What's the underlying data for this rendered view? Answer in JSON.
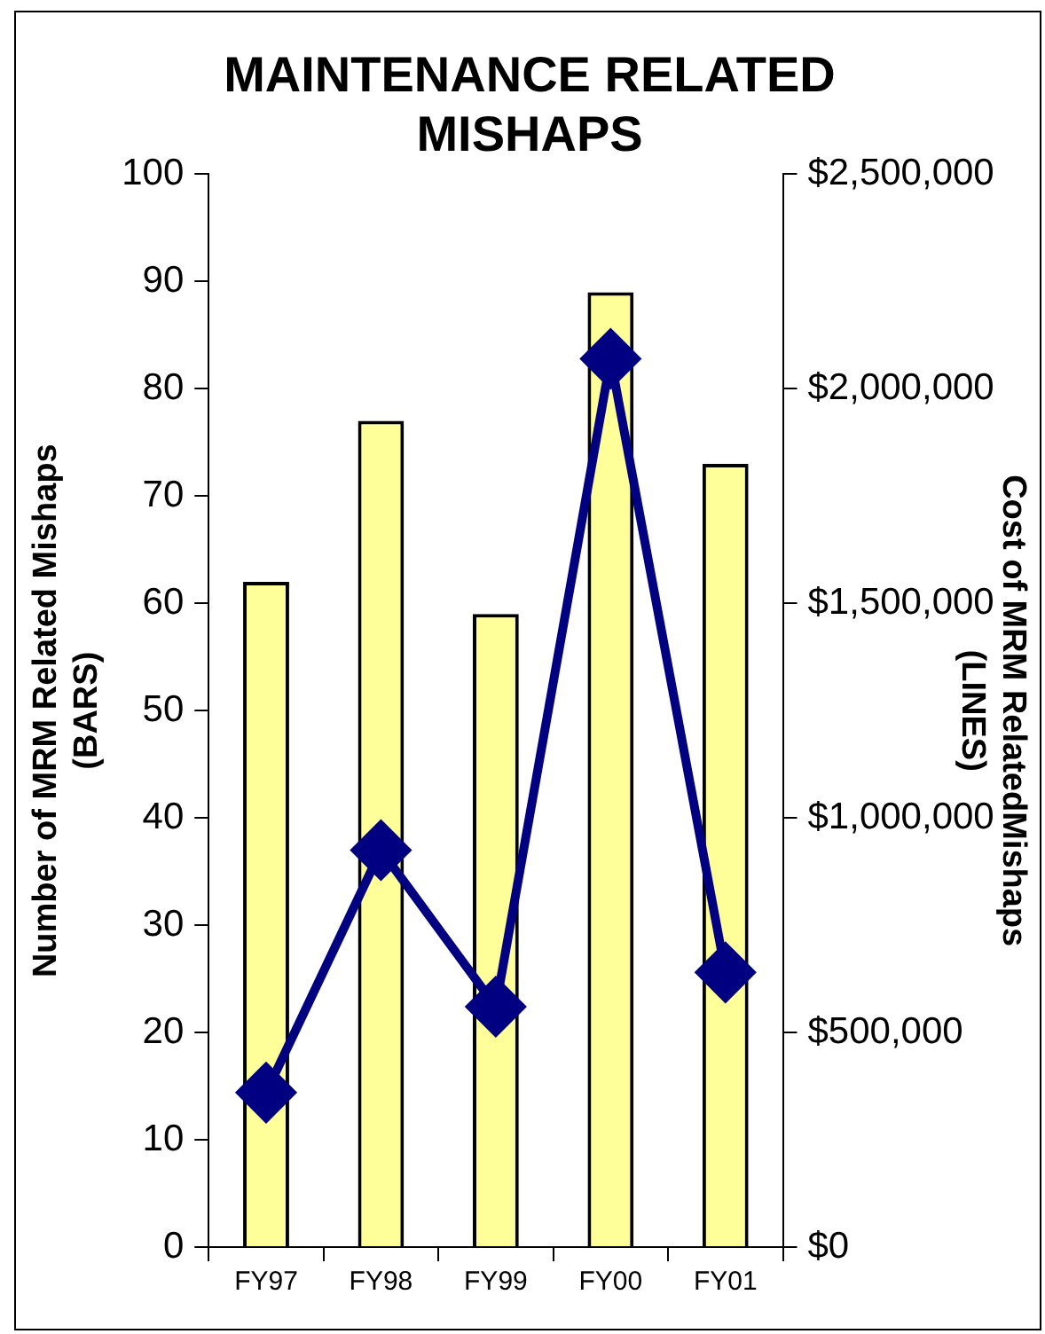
{
  "chart_data": {
    "type": "bar",
    "title": "MAINTENANCE RELATED\nMISHAPS",
    "ylabel": "Number of MRM Related Mishaps\n(BARS)",
    "y2label": "Cost of MRM RelatedMishaps\n(LINES)",
    "categories": [
      "FY97",
      "FY98",
      "FY99",
      "FY00",
      "FY01"
    ],
    "series": [
      {
        "color": "#ffff99",
        "values": [
          62,
          77,
          59,
          89,
          73
        ]
      },
      {
        "type": "line",
        "axis": "y2",
        "color": "#000080",
        "marker": "diamond",
        "values": [
          360000,
          925000,
          560000,
          2070000,
          640000
        ]
      }
    ],
    "ylim": [
      0,
      100
    ],
    "yticks": [
      0,
      10,
      20,
      30,
      40,
      50,
      60,
      70,
      80,
      90,
      100
    ],
    "y2lim": [
      0,
      2500000
    ],
    "y2ticks": [
      {
        "value": 0,
        "label": "$0"
      },
      {
        "value": 500000,
        "label": "$500,000"
      },
      {
        "value": 1000000,
        "label": "$1,000,000"
      },
      {
        "value": 1500000,
        "label": "$1,500,000"
      },
      {
        "value": 2000000,
        "label": "$2,000,000"
      },
      {
        "value": 2500000,
        "label": "$2,500,000"
      }
    ],
    "grid": false,
    "legend": false
  }
}
